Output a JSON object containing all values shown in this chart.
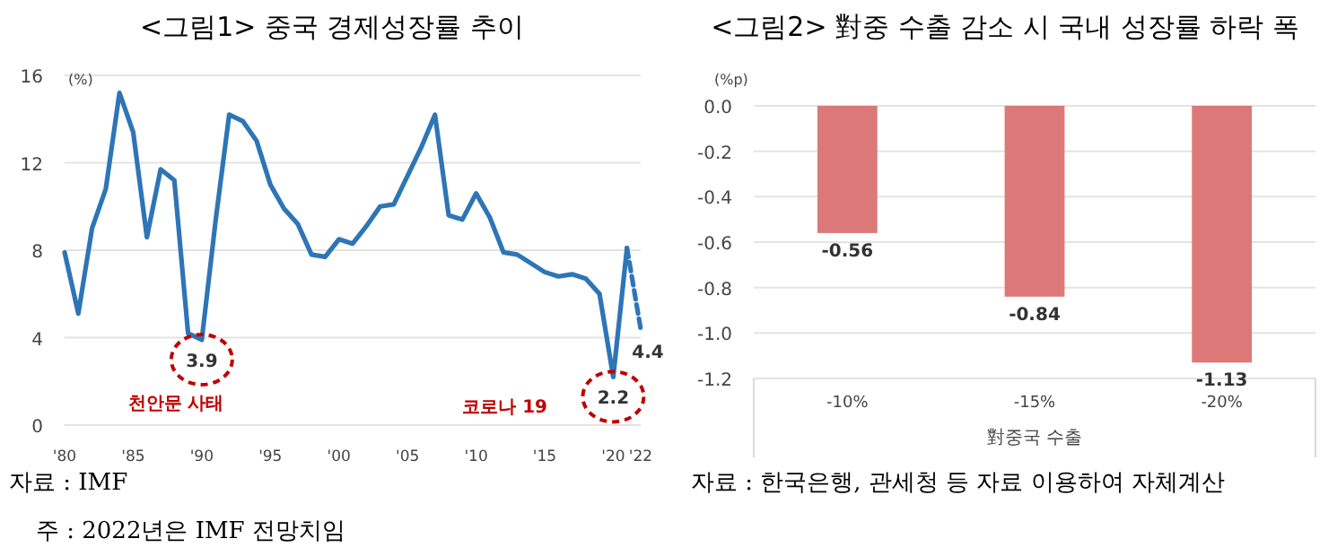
{
  "chart_data": [
    {
      "type": "line",
      "title": "<그림1> 중국 경제성장률 추이",
      "ylabel": "(%)",
      "x": [
        1980,
        1981,
        1982,
        1983,
        1984,
        1985,
        1986,
        1987,
        1988,
        1989,
        1990,
        1991,
        1992,
        1993,
        1994,
        1995,
        1996,
        1997,
        1998,
        1999,
        2000,
        2001,
        2002,
        2003,
        2004,
        2005,
        2006,
        2007,
        2008,
        2009,
        2010,
        2011,
        2012,
        2013,
        2014,
        2015,
        2016,
        2017,
        2018,
        2019,
        2020,
        2021
      ],
      "series": [
        {
          "color": "#2e75b6",
          "values": [
            7.9,
            5.1,
            9.0,
            10.8,
            15.2,
            13.4,
            8.6,
            11.7,
            11.2,
            4.2,
            3.9,
            9.3,
            14.2,
            13.9,
            13.0,
            11.0,
            9.9,
            9.2,
            7.8,
            7.7,
            8.5,
            8.3,
            9.1,
            10.0,
            10.1,
            11.4,
            12.7,
            14.2,
            9.6,
            9.4,
            10.6,
            9.5,
            7.9,
            7.8,
            7.4,
            7.0,
            6.8,
            6.9,
            6.7,
            6.0,
            2.2,
            8.1
          ]
        },
        {
          "color": "#2e75b6",
          "x": [
            2021,
            2022
          ],
          "values": [
            8.1,
            4.4
          ],
          "line_style": "dashed"
        }
      ],
      "xlim": [
        1980,
        2022
      ],
      "xticks": [
        {
          "value": 1980,
          "label": "'80"
        },
        {
          "value": 1985,
          "label": "'85"
        },
        {
          "value": 1990,
          "label": "'90"
        },
        {
          "value": 1995,
          "label": "'95"
        },
        {
          "value": 2000,
          "label": "'00"
        },
        {
          "value": 2005,
          "label": "'05"
        },
        {
          "value": 2010,
          "label": "'10"
        },
        {
          "value": 2015,
          "label": "'15"
        },
        {
          "value": 2020,
          "label": "'20"
        },
        {
          "value": 2022,
          "label": "'22"
        }
      ],
      "ylim": [
        0,
        16
      ],
      "yticks": [
        0,
        4,
        8,
        12,
        16
      ],
      "grid": "y",
      "line_style": "solid",
      "annotations": [
        {
          "text": "3.9",
          "x": 1990,
          "y": 3.9
        },
        "천안문 사태",
        {
          "text": "2.2",
          "x": 2020,
          "y": 2.2
        },
        "코로나 19",
        {
          "text": "4.4",
          "x": 2022,
          "y": 4.4
        },
        "자료 : IMF",
        "주 : 2022년은 IMF 전망치임"
      ]
    },
    {
      "type": "bar",
      "title": "<그림2> 對중 수출 감소 시 국내 성장률 하락 폭",
      "ylabel": "(%p)",
      "xlabel": "對중국 수출",
      "categories": [
        "-10%",
        "-15%",
        "-20%"
      ],
      "values": [
        -0.56,
        -0.84,
        -1.13
      ],
      "color": "#dc7878",
      "data_labels": true,
      "ylim": [
        -1.2,
        0
      ],
      "yticks": [
        {
          "value": -1.2,
          "label": "-1.2"
        },
        {
          "value": -1.0,
          "label": "-1.0"
        },
        {
          "value": -0.8,
          "label": "-0.8"
        },
        {
          "value": -0.6,
          "label": "-0.6"
        },
        {
          "value": -0.4,
          "label": "-0.4"
        },
        {
          "value": -0.2,
          "label": "-0.2"
        },
        {
          "value": 0,
          "label": "0.0"
        }
      ],
      "grid": "y",
      "annotations": [
        "자료 : 한국은행, 관세청 등 자료 이용하여 자체계산"
      ]
    }
  ]
}
